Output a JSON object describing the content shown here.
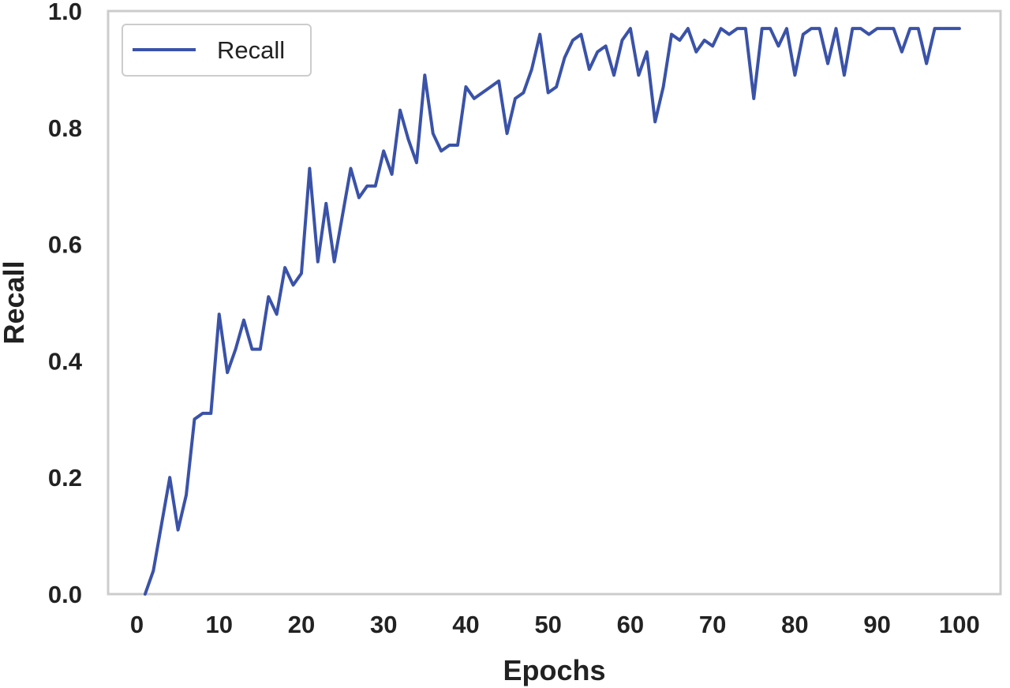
{
  "chart_data": {
    "type": "line",
    "title": "",
    "xlabel": "Epochs",
    "ylabel": "Recall",
    "xlim": [
      -3.5,
      105
    ],
    "ylim": [
      0.0,
      1.0
    ],
    "xticks": [
      0,
      10,
      20,
      30,
      40,
      50,
      60,
      70,
      80,
      90,
      100
    ],
    "yticks": [
      0.0,
      0.2,
      0.4,
      0.6,
      0.8,
      1.0
    ],
    "xtick_labels": [
      "0",
      "10",
      "20",
      "30",
      "40",
      "50",
      "60",
      "70",
      "80",
      "90",
      "100"
    ],
    "ytick_labels": [
      "0.0",
      "0.2",
      "0.4",
      "0.6",
      "0.8",
      "1.0"
    ],
    "grid": false,
    "legend_position": "top-left",
    "series": [
      {
        "name": "Recall",
        "color": "#3a52a8",
        "x": [
          1,
          2,
          3,
          4,
          5,
          6,
          7,
          8,
          9,
          10,
          11,
          12,
          13,
          14,
          15,
          16,
          17,
          18,
          19,
          20,
          21,
          22,
          23,
          24,
          25,
          26,
          27,
          28,
          29,
          30,
          31,
          32,
          33,
          34,
          35,
          36,
          37,
          38,
          39,
          40,
          41,
          42,
          43,
          44,
          45,
          46,
          47,
          48,
          49,
          50,
          51,
          52,
          53,
          54,
          55,
          56,
          57,
          58,
          59,
          60,
          61,
          62,
          63,
          64,
          65,
          66,
          67,
          68,
          69,
          70,
          71,
          72,
          73,
          74,
          75,
          76,
          77,
          78,
          79,
          80,
          81,
          82,
          83,
          84,
          85,
          86,
          87,
          88,
          89,
          90,
          91,
          92,
          93,
          94,
          95,
          96,
          97,
          98,
          99,
          100
        ],
        "y": [
          0.0,
          0.04,
          0.12,
          0.2,
          0.11,
          0.17,
          0.3,
          0.31,
          0.31,
          0.48,
          0.38,
          0.42,
          0.47,
          0.42,
          0.42,
          0.51,
          0.48,
          0.56,
          0.53,
          0.55,
          0.73,
          0.57,
          0.67,
          0.57,
          0.65,
          0.73,
          0.68,
          0.7,
          0.7,
          0.76,
          0.72,
          0.83,
          0.78,
          0.74,
          0.89,
          0.79,
          0.76,
          0.77,
          0.77,
          0.87,
          0.85,
          0.86,
          0.87,
          0.88,
          0.79,
          0.85,
          0.86,
          0.9,
          0.96,
          0.86,
          0.87,
          0.92,
          0.95,
          0.96,
          0.9,
          0.93,
          0.94,
          0.89,
          0.95,
          0.97,
          0.89,
          0.93,
          0.81,
          0.87,
          0.96,
          0.95,
          0.97,
          0.93,
          0.95,
          0.94,
          0.97,
          0.96,
          0.97,
          0.97,
          0.85,
          0.97,
          0.97,
          0.94,
          0.97,
          0.89,
          0.96,
          0.97,
          0.97,
          0.91,
          0.97,
          0.89,
          0.97,
          0.97,
          0.96,
          0.97,
          0.97,
          0.97,
          0.93,
          0.97,
          0.97,
          0.91,
          0.97,
          0.97,
          0.97,
          0.97
        ]
      }
    ]
  },
  "colors": {
    "frame": "#cccccc",
    "text": "#222222",
    "legend_border": "#cccccc",
    "background": "#ffffff"
  }
}
